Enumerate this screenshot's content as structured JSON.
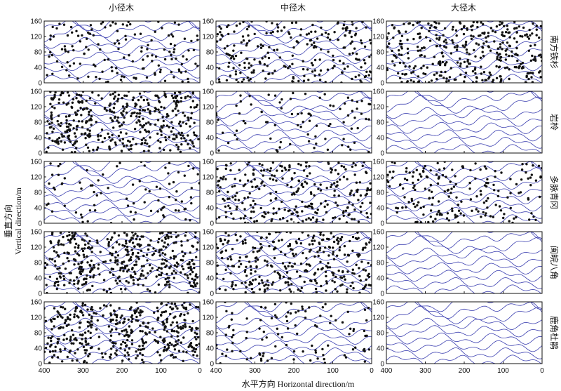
{
  "chart_data": {
    "type": "scatter",
    "description_layout": "5x3 small multiples of point patterns over contour lines",
    "columns": [
      "小径木",
      "中径木",
      "大径木"
    ],
    "rows": [
      "南方铁杉",
      "岩柃",
      "多脉青冈",
      "闽皖八角",
      "鹿角杜鹃"
    ],
    "xlabel": "水平方向 Horizontal direction/m",
    "ylabel_cn": "垂直方向",
    "ylabel_en": "Vertical direction/m",
    "xlim": [
      400,
      0
    ],
    "ylim": [
      0,
      160
    ],
    "xticks": [
      "400",
      "300",
      "200",
      "100",
      "0"
    ],
    "yticks": [
      "160",
      "120",
      "80",
      "40",
      "0"
    ],
    "contour_color": "#3b3fb0",
    "point_color": "#111111",
    "density": [
      [
        0.35,
        0.55,
        0.85
      ],
      [
        1.0,
        0.2,
        0.0
      ],
      [
        0.2,
        0.65,
        0.45
      ],
      [
        1.0,
        0.75,
        0.0
      ],
      [
        1.0,
        0.25,
        0.0
      ]
    ]
  }
}
